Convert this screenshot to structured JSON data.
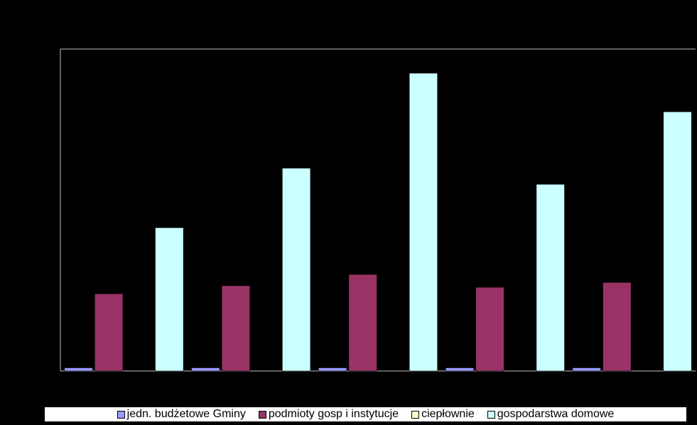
{
  "chart_data": {
    "type": "bar",
    "title": "",
    "xlabel": "",
    "ylabel": "",
    "categories": [
      "",
      "",
      "",
      "",
      ""
    ],
    "ylim": [
      0,
      100
    ],
    "grid": false,
    "legend_position": "bottom",
    "series": [
      {
        "name": "jedn. budżetowe Gminy",
        "color": "#9999ff",
        "values": [
          1,
          1,
          1,
          1,
          1
        ]
      },
      {
        "name": "podmioty gosp i instytucje",
        "color": "#993366",
        "values": [
          24,
          26.5,
          30,
          26,
          27.5
        ]
      },
      {
        "name": "ciepłownie",
        "color": "#ffffcc",
        "values": [
          0,
          0,
          0,
          0,
          0
        ]
      },
      {
        "name": "gospodarstwa domowe",
        "color": "#ccffff",
        "values": [
          44.5,
          63,
          92.5,
          58,
          80.5
        ]
      }
    ]
  }
}
